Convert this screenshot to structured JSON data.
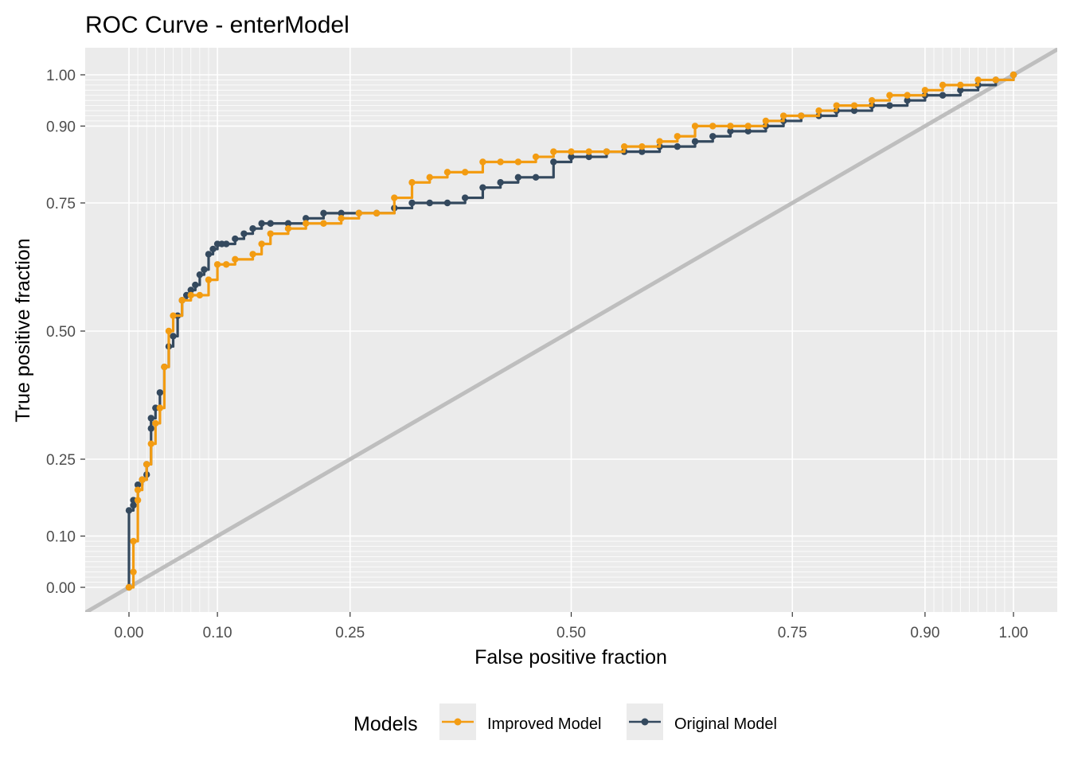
{
  "chart_data": {
    "type": "line",
    "title": "ROC Curve - enterModel",
    "xlabel": "False positive fraction",
    "ylabel": "True positive fraction",
    "xlim": [
      -0.05,
      1.05
    ],
    "ylim": [
      -0.05,
      1.05
    ],
    "x_ticks": [
      0,
      0.1,
      0.25,
      0.5,
      0.75,
      0.9,
      1
    ],
    "x_tick_labels": [
      "0.00",
      "0.10",
      "0.25",
      "0.50",
      "0.75",
      "0.90",
      "1.00"
    ],
    "y_ticks": [
      0,
      0.1,
      0.25,
      0.5,
      0.75,
      0.9,
      1
    ],
    "y_tick_labels": [
      "0.00",
      "0.10",
      "0.25",
      "0.50",
      "0.75",
      "0.90",
      "1.00"
    ],
    "minor_grid": [
      0.01,
      0.02,
      0.03,
      0.04,
      0.05,
      0.06,
      0.07,
      0.08,
      0.09,
      0.91,
      0.92,
      0.93,
      0.94,
      0.95,
      0.96,
      0.97,
      0.98,
      0.99
    ],
    "grid": true,
    "background": "#ebebeb",
    "reference_line": {
      "x": [
        -0.05,
        1.05
      ],
      "y": [
        -0.05,
        1.05
      ],
      "color": "#bebebe"
    },
    "legend": {
      "title": "Models",
      "position": "bottom"
    },
    "series": [
      {
        "name": "Original Model",
        "color": "#34495e",
        "x": [
          0,
          0,
          0.005,
          0.005,
          0.01,
          0.015,
          0.02,
          0.02,
          0.025,
          0.025,
          0.03,
          0.035,
          0.04,
          0.045,
          0.05,
          0.055,
          0.06,
          0.065,
          0.07,
          0.075,
          0.08,
          0.085,
          0.09,
          0.095,
          0.1,
          0.105,
          0.11,
          0.12,
          0.13,
          0.14,
          0.15,
          0.16,
          0.18,
          0.2,
          0.22,
          0.24,
          0.26,
          0.28,
          0.3,
          0.32,
          0.34,
          0.36,
          0.38,
          0.4,
          0.42,
          0.44,
          0.46,
          0.48,
          0.5,
          0.52,
          0.54,
          0.56,
          0.58,
          0.6,
          0.62,
          0.64,
          0.66,
          0.68,
          0.7,
          0.72,
          0.74,
          0.76,
          0.78,
          0.8,
          0.82,
          0.84,
          0.86,
          0.88,
          0.9,
          0.92,
          0.94,
          0.96,
          0.98,
          1
        ],
        "y": [
          0,
          0.15,
          0.16,
          0.17,
          0.2,
          0.21,
          0.22,
          0.24,
          0.31,
          0.33,
          0.35,
          0.38,
          0.43,
          0.47,
          0.49,
          0.53,
          0.56,
          0.57,
          0.58,
          0.59,
          0.61,
          0.62,
          0.65,
          0.66,
          0.67,
          0.67,
          0.67,
          0.68,
          0.69,
          0.7,
          0.71,
          0.71,
          0.71,
          0.72,
          0.73,
          0.73,
          0.73,
          0.73,
          0.74,
          0.75,
          0.75,
          0.75,
          0.76,
          0.78,
          0.79,
          0.8,
          0.8,
          0.83,
          0.84,
          0.84,
          0.85,
          0.85,
          0.85,
          0.86,
          0.86,
          0.87,
          0.88,
          0.89,
          0.89,
          0.9,
          0.91,
          0.92,
          0.92,
          0.93,
          0.93,
          0.94,
          0.94,
          0.95,
          0.96,
          0.96,
          0.97,
          0.98,
          0.99,
          1
        ]
      },
      {
        "name": "Improved Model",
        "color": "#f39c12",
        "x": [
          0,
          0.005,
          0.005,
          0.01,
          0.01,
          0.015,
          0.02,
          0.025,
          0.03,
          0.035,
          0.04,
          0.045,
          0.05,
          0.06,
          0.07,
          0.08,
          0.09,
          0.1,
          0.11,
          0.12,
          0.14,
          0.15,
          0.16,
          0.18,
          0.2,
          0.22,
          0.24,
          0.26,
          0.28,
          0.3,
          0.32,
          0.34,
          0.36,
          0.38,
          0.4,
          0.42,
          0.44,
          0.46,
          0.48,
          0.5,
          0.52,
          0.54,
          0.56,
          0.58,
          0.6,
          0.62,
          0.64,
          0.66,
          0.68,
          0.7,
          0.72,
          0.74,
          0.76,
          0.78,
          0.8,
          0.82,
          0.84,
          0.86,
          0.88,
          0.9,
          0.92,
          0.94,
          0.96,
          0.98,
          1
        ],
        "y": [
          0,
          0.03,
          0.09,
          0.17,
          0.19,
          0.21,
          0.24,
          0.28,
          0.32,
          0.35,
          0.43,
          0.5,
          0.53,
          0.56,
          0.57,
          0.57,
          0.6,
          0.63,
          0.63,
          0.64,
          0.65,
          0.67,
          0.69,
          0.7,
          0.71,
          0.71,
          0.72,
          0.73,
          0.73,
          0.76,
          0.79,
          0.8,
          0.81,
          0.81,
          0.83,
          0.83,
          0.83,
          0.84,
          0.85,
          0.85,
          0.85,
          0.85,
          0.86,
          0.86,
          0.87,
          0.88,
          0.9,
          0.9,
          0.9,
          0.9,
          0.91,
          0.92,
          0.92,
          0.93,
          0.94,
          0.94,
          0.95,
          0.96,
          0.96,
          0.97,
          0.98,
          0.98,
          0.99,
          0.99,
          1
        ]
      }
    ]
  }
}
